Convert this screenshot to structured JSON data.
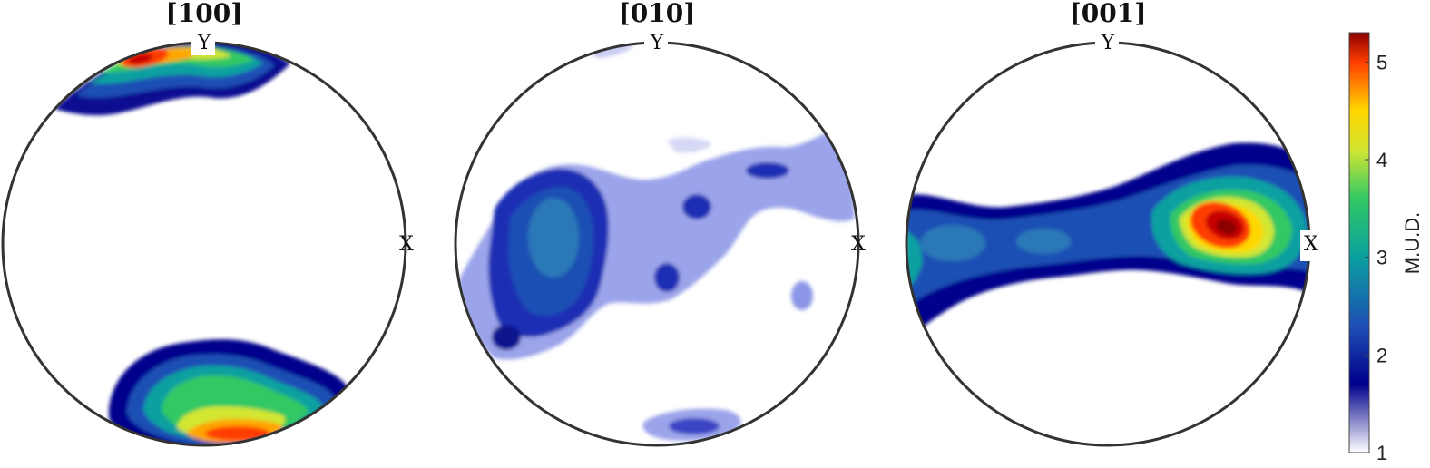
{
  "chart_data": {
    "type": "heatmap",
    "figure_kind": "pole-figure",
    "projection": "equal-area",
    "grid": false,
    "colormap_stops": [
      {
        "value": 1.0,
        "color": "#ffffff"
      },
      {
        "value": 1.7,
        "color": "#00008c"
      },
      {
        "value": 2.3,
        "color": "#1e50b4"
      },
      {
        "value": 3.0,
        "color": "#0aa0a0"
      },
      {
        "value": 3.6,
        "color": "#32c864"
      },
      {
        "value": 4.1,
        "color": "#d2e632"
      },
      {
        "value": 4.5,
        "color": "#ffd700"
      },
      {
        "value": 5.0,
        "color": "#ff3c00"
      },
      {
        "value": 5.3,
        "color": "#8b0000"
      }
    ],
    "colorbar": {
      "label": "M.U.D.",
      "range": [
        1,
        5.3
      ],
      "ticks": [
        1,
        2,
        3,
        4,
        5
      ],
      "tick_labels": [
        "1",
        "2",
        "3",
        "4",
        "5"
      ]
    },
    "pole_figures": [
      {
        "title": "[100]",
        "x_axis_label": "X",
        "y_axis_label": "Y",
        "peak_mud": 5.1,
        "high_density_zones": [
          {
            "position": "upper-left near Y (top rim)",
            "mud": 5.1
          },
          {
            "position": "bottom rim",
            "mud": 4.5
          }
        ]
      },
      {
        "title": "[010]",
        "x_axis_label": "X",
        "y_axis_label": "Y",
        "peak_mud": 2.6,
        "high_density_zones": [
          {
            "position": "center-left",
            "mud": 2.6
          },
          {
            "position": "diffuse band across center",
            "mud": 1.8
          }
        ]
      },
      {
        "title": "[001]",
        "x_axis_label": "X",
        "y_axis_label": "Y",
        "peak_mud": 5.3,
        "high_density_zones": [
          {
            "position": "right of center toward X",
            "mud": 5.3
          },
          {
            "position": "horizontal girdle along X",
            "mud": 2.2
          }
        ]
      }
    ]
  }
}
